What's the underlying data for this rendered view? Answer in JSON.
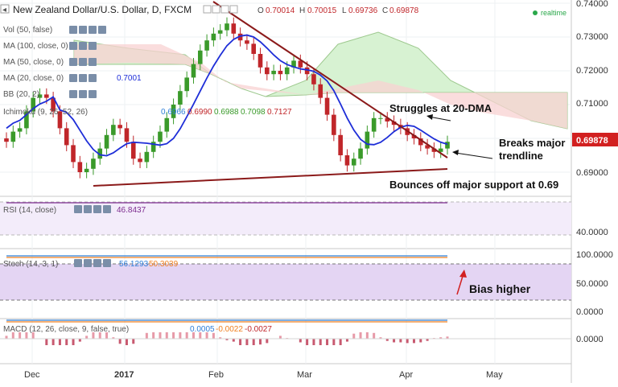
{
  "header": {
    "pair": "New Zealand Dollar/U.S. Dollar, D, FXCM",
    "o_label": "O",
    "o_value": "0.70014",
    "h_label": "H",
    "h_value": "0.70015",
    "l_label": "L",
    "l_value": "0.69736",
    "c_label": "C",
    "c_value": "0.69878",
    "realtime": "realtime"
  },
  "indicators": {
    "vol": "Vol (50, false)",
    "ma100": "MA (100, close, 0)",
    "ma50": "MA (50, close, 0)",
    "ma20": "MA (20, close, 0)",
    "ma20_value": "0.7001",
    "bb": "BB (20, 2)",
    "ichimoku": "Ichimoku (9, 26, 52, 26)",
    "ichimoku_values": [
      "0.6966",
      "0.6990",
      "0.6988",
      "0.7098",
      "0.7127"
    ]
  },
  "annotations": {
    "struggles": "Struggles at 20-DMA",
    "breaks_line1": "Breaks major",
    "breaks_line2": "trendline",
    "bounces": "Bounces off major support at 0.69",
    "bias": "Bias higher"
  },
  "price_tag": "0.69878",
  "price_axis": [
    "0.74000",
    "0.73000",
    "0.72000",
    "0.71000",
    "0.69000"
  ],
  "x_axis": [
    "Dec",
    "2017",
    "Feb",
    "Mar",
    "Apr",
    "May"
  ],
  "rsi": {
    "label": "RSI (14, close)",
    "value": "46.8437",
    "axis": [
      "40.0000"
    ]
  },
  "stoch": {
    "label": "Stoch (14, 3, 1)",
    "values": [
      "56.1293",
      "50.3039"
    ],
    "axis": [
      "100.0000",
      "50.0000",
      "0.0000"
    ]
  },
  "macd": {
    "label": "MACD (12, 26, close, 9, false, true)",
    "values": [
      "0.0005",
      "-0.0022",
      "-0.0027"
    ],
    "axis": [
      "0.0000"
    ]
  },
  "colors": {
    "up": "#3a9a2a",
    "down": "#c0262a",
    "ma20": "#1e2ed8",
    "kumo_up": "#d7f2d2",
    "kumo_down": "#f8d2d2",
    "trendline": "#8b1a1a",
    "rsi": "#7d2d8f",
    "stoch_k": "#2e7fd8",
    "stoch_d": "#f08020",
    "band": "#e4d5f3",
    "price_tag": "#d22020",
    "annotation_arrow": "#d22020"
  },
  "chart_data": {
    "type": "candlestick",
    "instrument": "New Zealand Dollar/U.S. Dollar, D, FXCM",
    "ohlc_last": {
      "open": 0.70014,
      "high": 0.70015,
      "low": 0.69736,
      "close": 0.69878
    },
    "close_series_approx": [
      0.699,
      0.702,
      0.703,
      0.708,
      0.712,
      0.713,
      0.712,
      0.708,
      0.703,
      0.698,
      0.693,
      0.69,
      0.691,
      0.694,
      0.697,
      0.701,
      0.704,
      0.703,
      0.699,
      0.694,
      0.693,
      0.696,
      0.699,
      0.702,
      0.706,
      0.71,
      0.714,
      0.718,
      0.722,
      0.726,
      0.729,
      0.731,
      0.732,
      0.734,
      0.731,
      0.729,
      0.728,
      0.725,
      0.721,
      0.719,
      0.72,
      0.719,
      0.721,
      0.723,
      0.721,
      0.719,
      0.716,
      0.712,
      0.707,
      0.701,
      0.695,
      0.692,
      0.694,
      0.697,
      0.702,
      0.706,
      0.706,
      0.705,
      0.704,
      0.703,
      0.701,
      0.7,
      0.698,
      0.697,
      0.696,
      0.697,
      0.699
    ],
    "ma20_value": 0.7001,
    "ylim": [
      0.685,
      0.742
    ],
    "support": 0.69
  }
}
